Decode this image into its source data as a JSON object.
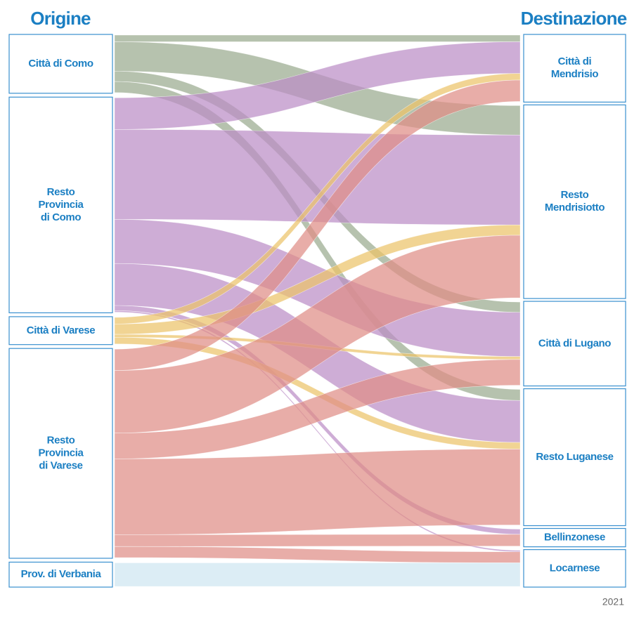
{
  "chart_data": {
    "type": "sankey",
    "source_title": "Origine",
    "target_title": "Destinazione",
    "footer": "2021",
    "sources": [
      {
        "label": [
          "Città di Como"
        ],
        "color": "#9aab8f"
      },
      {
        "label": [
          "Resto",
          "Provincia",
          "di Como"
        ],
        "color": "#bb8dc6"
      },
      {
        "label": [
          "Città di Varese"
        ],
        "color": "#ebc46a"
      },
      {
        "label": [
          "Resto",
          "Provincia",
          "di Varese"
        ],
        "color": "#df8e86"
      },
      {
        "label": [
          "Prov. di Verbania"
        ],
        "color": "#cfe6f1"
      }
    ],
    "targets": [
      {
        "label": [
          "Città di",
          "Mendrisio"
        ]
      },
      {
        "label": [
          "Resto",
          "Mendrisiotto"
        ]
      },
      {
        "label": [
          "Città di Lugano"
        ]
      },
      {
        "label": [
          "Resto Luganese"
        ]
      },
      {
        "label": [
          "Bellinzonese"
        ]
      },
      {
        "label": [
          "Locarnese"
        ]
      }
    ],
    "links": [
      {
        "source": 0,
        "target": 0,
        "value": 9
      },
      {
        "source": 0,
        "target": 1,
        "value": 40
      },
      {
        "source": 0,
        "target": 2,
        "value": 14
      },
      {
        "source": 0,
        "target": 3,
        "value": 15
      },
      {
        "source": 1,
        "target": 0,
        "value": 43
      },
      {
        "source": 1,
        "target": 1,
        "value": 122
      },
      {
        "source": 1,
        "target": 2,
        "value": 60
      },
      {
        "source": 1,
        "target": 3,
        "value": 57
      },
      {
        "source": 1,
        "target": 4,
        "value": 7
      },
      {
        "source": 1,
        "target": 5,
        "value": 2
      },
      {
        "source": 2,
        "target": 0,
        "value": 9
      },
      {
        "source": 2,
        "target": 1,
        "value": 14
      },
      {
        "source": 2,
        "target": 2,
        "value": 4
      },
      {
        "source": 2,
        "target": 3,
        "value": 9
      },
      {
        "source": 3,
        "target": 0,
        "value": 29
      },
      {
        "source": 3,
        "target": 1,
        "value": 85
      },
      {
        "source": 3,
        "target": 2,
        "value": 35
      },
      {
        "source": 3,
        "target": 3,
        "value": 103
      },
      {
        "source": 3,
        "target": 4,
        "value": 16
      },
      {
        "source": 3,
        "target": 5,
        "value": 15
      },
      {
        "source": 4,
        "target": 5,
        "value": 32
      }
    ]
  }
}
